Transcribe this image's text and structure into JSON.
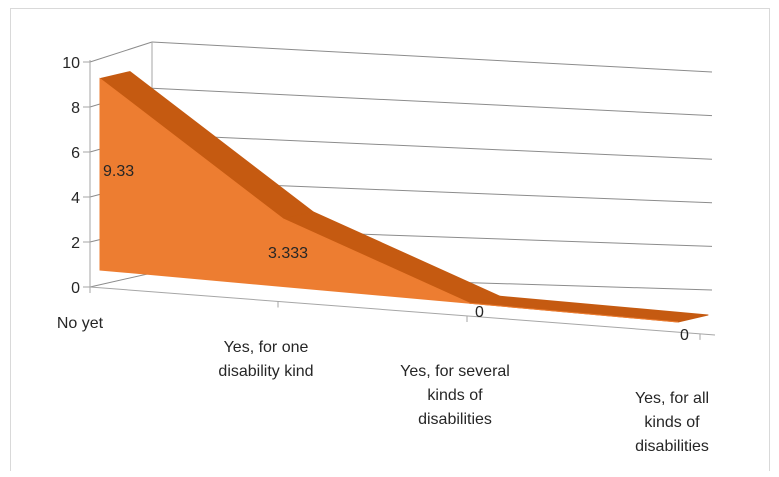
{
  "chart_data": {
    "type": "area",
    "style": "3d",
    "categories": [
      [
        "No yet"
      ],
      [
        "Yes, for one",
        "disability kind"
      ],
      [
        "Yes, for several",
        "kinds of",
        "disabilities"
      ],
      [
        "Yes, for all",
        "kinds of",
        "disabilities"
      ]
    ],
    "values": [
      9.33,
      3.333,
      0,
      0
    ],
    "data_labels": [
      "9.33",
      "3.333",
      "0",
      "0"
    ],
    "ylim": [
      0,
      10
    ],
    "yticks": [
      "0",
      "2",
      "4",
      "6",
      "8",
      "10"
    ],
    "title": "",
    "xlabel": "",
    "ylabel": "",
    "grid": true,
    "colors": {
      "front": "#ED7D31",
      "top": "#C55A11",
      "grid": "#8C8C8C",
      "axis": "#A6A6A6"
    }
  }
}
